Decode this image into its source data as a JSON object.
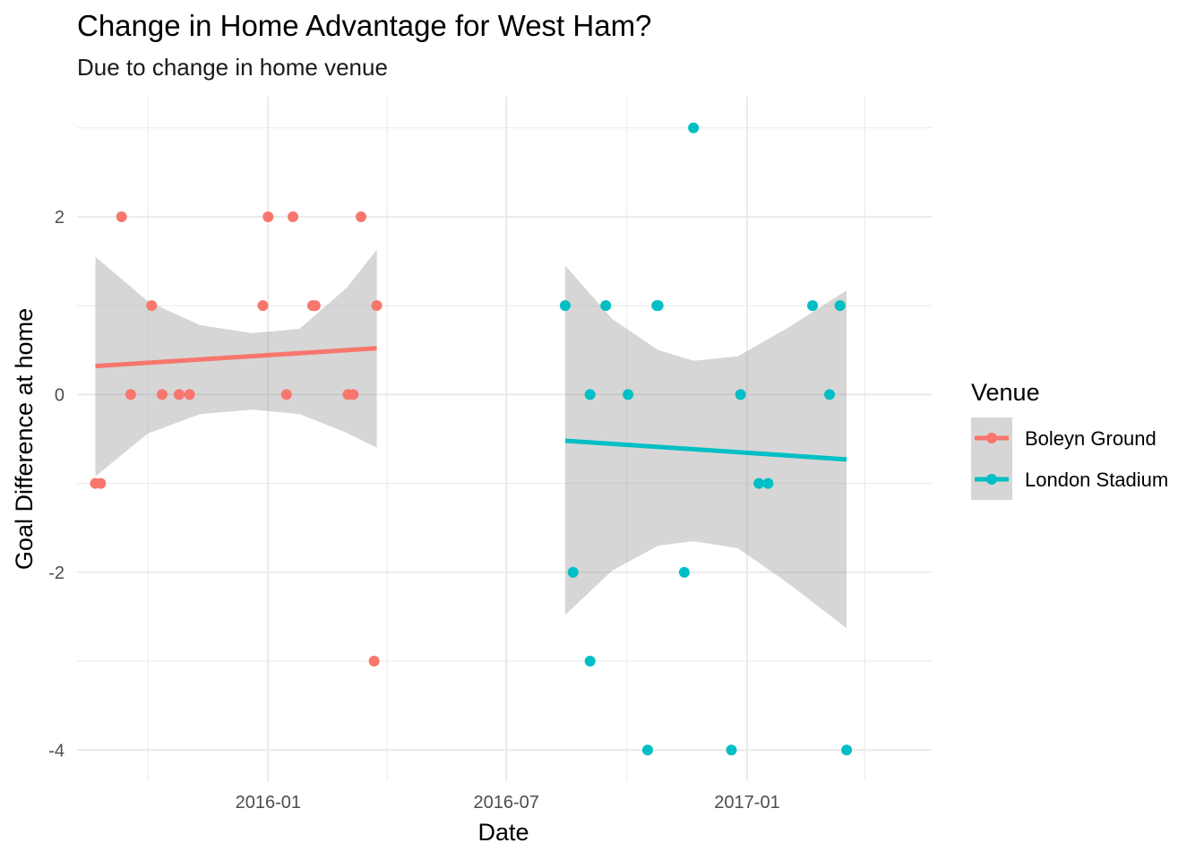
{
  "chart_data": {
    "type": "scatter",
    "title": "Change in Home Advantage for West Ham?",
    "subtitle": "Due to change in home venue",
    "xlabel": "Date",
    "ylabel": "Goal Difference at home",
    "x_type": "date",
    "xlim": [
      "2015-08-08",
      "2017-05-22"
    ],
    "ylim": [
      -4.35,
      3.35
    ],
    "x_ticks": [
      {
        "value": "2016-01-01",
        "label": "2016-01"
      },
      {
        "value": "2016-07-01",
        "label": "2016-07"
      },
      {
        "value": "2017-01-01",
        "label": "2017-01"
      }
    ],
    "x_minor_ticks": [
      "2015-10-01",
      "2016-04-01",
      "2016-10-01",
      "2017-04-01"
    ],
    "y_ticks": [
      -4,
      -2,
      0,
      2
    ],
    "y_minor_ticks": [
      -3,
      -1,
      1,
      3
    ],
    "grid": true,
    "legend": {
      "title": "Venue",
      "position": "right"
    },
    "series": [
      {
        "name": "Boleyn Ground",
        "color": "#F8766D",
        "points": [
          {
            "x": "2015-08-22",
            "y": -1
          },
          {
            "x": "2015-08-26",
            "y": -1
          },
          {
            "x": "2015-09-11",
            "y": 2
          },
          {
            "x": "2015-09-18",
            "y": 0
          },
          {
            "x": "2015-10-04",
            "y": 1
          },
          {
            "x": "2015-10-12",
            "y": 0
          },
          {
            "x": "2015-10-25",
            "y": 0
          },
          {
            "x": "2015-11-02",
            "y": 0
          },
          {
            "x": "2015-12-28",
            "y": 1
          },
          {
            "x": "2016-01-01",
            "y": 2
          },
          {
            "x": "2016-01-15",
            "y": 0
          },
          {
            "x": "2016-01-20",
            "y": 2
          },
          {
            "x": "2016-02-04",
            "y": 1
          },
          {
            "x": "2016-02-06",
            "y": 1
          },
          {
            "x": "2016-03-02",
            "y": 0
          },
          {
            "x": "2016-03-06",
            "y": 0
          },
          {
            "x": "2016-03-12",
            "y": 2
          },
          {
            "x": "2016-03-22",
            "y": -3
          },
          {
            "x": "2016-03-24",
            "y": 1
          }
        ],
        "trend": {
          "x": [
            "2015-08-22",
            "2016-03-24"
          ],
          "y": [
            0.32,
            0.52
          ]
        },
        "band": {
          "x": [
            "2015-08-22",
            "2015-10-01",
            "2015-11-10",
            "2015-12-20",
            "2016-01-25",
            "2016-03-01",
            "2016-03-24"
          ],
          "upper": [
            1.55,
            1.05,
            0.78,
            0.69,
            0.74,
            1.2,
            1.63
          ],
          "lower": [
            -0.92,
            -0.44,
            -0.22,
            -0.17,
            -0.22,
            -0.43,
            -0.6
          ]
        }
      },
      {
        "name": "London Stadium",
        "color": "#00BFC4",
        "points": [
          {
            "x": "2016-08-15",
            "y": 1
          },
          {
            "x": "2016-08-21",
            "y": -2
          },
          {
            "x": "2016-09-03",
            "y": 0
          },
          {
            "x": "2016-09-03",
            "y": -3
          },
          {
            "x": "2016-09-15",
            "y": 1
          },
          {
            "x": "2016-10-02",
            "y": 0
          },
          {
            "x": "2016-10-17",
            "y": -4
          },
          {
            "x": "2016-10-24",
            "y": 1
          },
          {
            "x": "2016-10-25",
            "y": 1
          },
          {
            "x": "2016-11-14",
            "y": -2
          },
          {
            "x": "2016-11-21",
            "y": 3
          },
          {
            "x": "2016-12-20",
            "y": -4
          },
          {
            "x": "2016-12-27",
            "y": 0
          },
          {
            "x": "2017-01-10",
            "y": -1
          },
          {
            "x": "2017-01-17",
            "y": -1
          },
          {
            "x": "2017-02-20",
            "y": 1
          },
          {
            "x": "2017-03-05",
            "y": 0
          },
          {
            "x": "2017-03-13",
            "y": 1
          },
          {
            "x": "2017-03-18",
            "y": -4
          }
        ],
        "trend": {
          "x": [
            "2016-08-15",
            "2017-03-18"
          ],
          "y": [
            -0.52,
            -0.73
          ]
        },
        "band": {
          "x": [
            "2016-08-15",
            "2016-09-20",
            "2016-10-25",
            "2016-11-21",
            "2016-12-25",
            "2017-02-01",
            "2017-03-18"
          ],
          "upper": [
            1.45,
            0.85,
            0.5,
            0.38,
            0.43,
            0.75,
            1.17
          ],
          "lower": [
            -2.48,
            -1.98,
            -1.7,
            -1.65,
            -1.73,
            -2.12,
            -2.63
          ]
        }
      }
    ]
  }
}
